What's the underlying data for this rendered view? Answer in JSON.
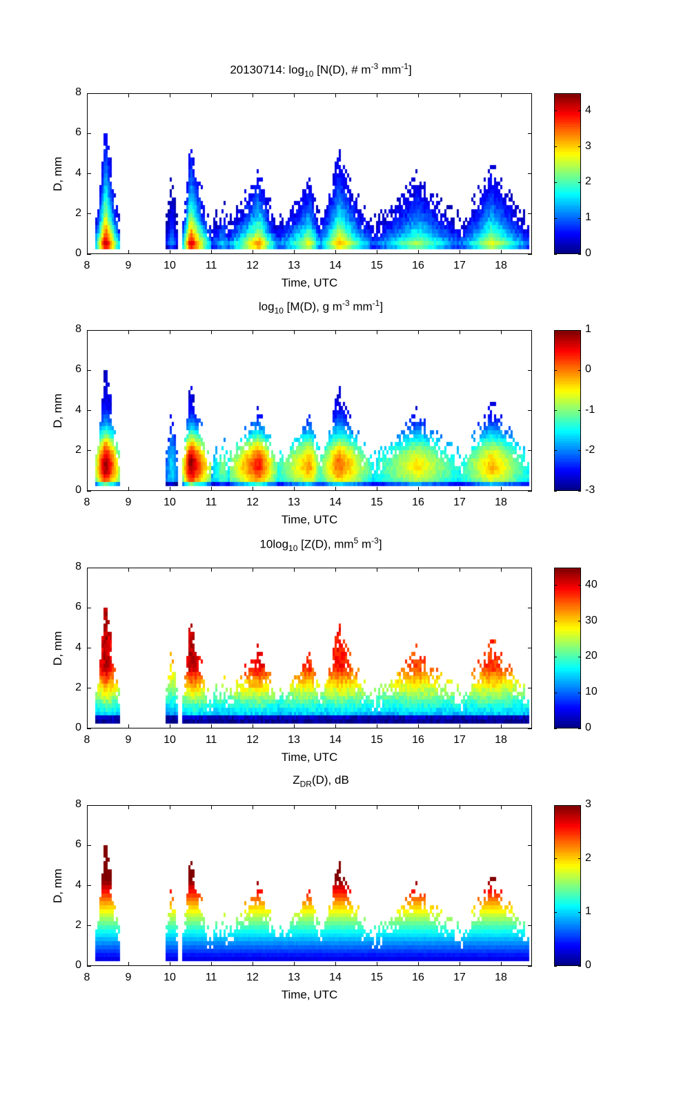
{
  "figure": {
    "date": "20130714"
  },
  "chart_data": [
    {
      "type": "heatmap",
      "title_parts": {
        "pre": "20130714: log",
        "sub": "10",
        "mid": " [N(D), # m",
        "sup1": "-3",
        "mid2": " mm",
        "sup2": "-1",
        "post": "]"
      },
      "title": "20130714: log10 [N(D), # m^-3 mm^-1]",
      "xlabel": "Time, UTC",
      "ylabel": "D, mm",
      "xlim": [
        8,
        18.75
      ],
      "ylim": [
        0,
        8
      ],
      "xticks": [
        "8",
        "9",
        "10",
        "11",
        "12",
        "13",
        "14",
        "15",
        "16",
        "17",
        "18"
      ],
      "yticks": [
        "0",
        "2",
        "4",
        "6",
        "8"
      ],
      "colorbar": {
        "range": [
          0,
          4.5
        ],
        "ticks": [
          "0",
          "1",
          "2",
          "3",
          "4"
        ],
        "colormap": "jet"
      },
      "field": "N",
      "description": "Drop number concentration spectra; maxima (~4.5) at D<1 mm near 8.5, 10.5, 12.2 UTC"
    },
    {
      "type": "heatmap",
      "title_parts": {
        "pre": "log",
        "sub": "10",
        "mid": " [M(D), g m",
        "sup1": "-3",
        "mid2": " mm",
        "sup2": "-1",
        "post": "]"
      },
      "title": "log10 [M(D), g m^-3 mm^-1]",
      "xlabel": "Time, UTC",
      "ylabel": "D, mm",
      "xlim": [
        8,
        18.75
      ],
      "ylim": [
        0,
        8
      ],
      "xticks": [
        "8",
        "9",
        "10",
        "11",
        "12",
        "13",
        "14",
        "15",
        "16",
        "17",
        "18"
      ],
      "yticks": [
        "0",
        "2",
        "4",
        "6",
        "8"
      ],
      "colorbar": {
        "range": [
          -3,
          1
        ],
        "ticks": [
          "-3",
          "-2",
          "-1",
          "0",
          "1"
        ],
        "colormap": "jet"
      },
      "field": "M",
      "description": "Mass spectra; maxima (~1) around D 1-2 mm near 10.5 UTC"
    },
    {
      "type": "heatmap",
      "title_parts": {
        "pre": "10log",
        "sub": "10",
        "mid": " [Z(D),  mm",
        "sup1": "5",
        "mid2": " m",
        "sup2": "-3",
        "post": "]"
      },
      "title": "10log10 [Z(D), mm^5 m^-3]",
      "xlabel": "Time, UTC",
      "ylabel": "D, mm",
      "xlim": [
        8,
        18.75
      ],
      "ylim": [
        0,
        8
      ],
      "xticks": [
        "8",
        "9",
        "10",
        "11",
        "12",
        "13",
        "14",
        "15",
        "16",
        "17",
        "18"
      ],
      "yticks": [
        "0",
        "2",
        "4",
        "6",
        "8"
      ],
      "colorbar": {
        "range": [
          0,
          45
        ],
        "ticks": [
          "0",
          "10",
          "20",
          "30",
          "40"
        ],
        "colormap": "jet"
      },
      "field": "Z",
      "description": "Reflectivity spectra; maxima (~45 dB) at large D near 8.4 and 10.5 UTC"
    },
    {
      "type": "heatmap",
      "title_parts": {
        "pre": "Z",
        "sub": "DR",
        "mid": "(D), dB",
        "sup1": "",
        "mid2": "",
        "sup2": "",
        "post": ""
      },
      "title": "ZDR(D), dB",
      "xlabel": "Time, UTC",
      "ylabel": "D, mm",
      "xlim": [
        8,
        18.75
      ],
      "ylim": [
        0,
        8
      ],
      "xticks": [
        "8",
        "9",
        "10",
        "11",
        "12",
        "13",
        "14",
        "15",
        "16",
        "17",
        "18"
      ],
      "yticks": [
        "0",
        "2",
        "4",
        "6",
        "8"
      ],
      "colorbar": {
        "range": [
          0,
          3
        ],
        "ticks": [
          "0",
          "1",
          "2",
          "3"
        ],
        "colormap": "jet"
      },
      "field": "ZDR",
      "description": "Differential reflectivity increasing with D: ~0.2 dB at 0.5 mm to ~3 dB at 5+ mm"
    }
  ],
  "rain_events": [
    {
      "t0": 8.2,
      "t1": 8.8,
      "peak_t": 8.45,
      "dmax": 6.5,
      "intensity": 1.0
    },
    {
      "t0": 9.9,
      "t1": 10.2,
      "peak_t": 10.05,
      "dmax": 4.0,
      "intensity": 0.25
    },
    {
      "t0": 10.3,
      "t1": 11.0,
      "peak_t": 10.5,
      "dmax": 5.5,
      "intensity": 1.0
    },
    {
      "t0": 11.0,
      "t1": 11.5,
      "peak_t": 11.3,
      "dmax": 2.3,
      "intensity": 0.45
    },
    {
      "t0": 11.4,
      "t1": 12.6,
      "peak_t": 12.15,
      "dmax": 4.0,
      "intensity": 0.85
    },
    {
      "t0": 12.6,
      "t1": 13.7,
      "peak_t": 13.4,
      "dmax": 3.8,
      "intensity": 0.7
    },
    {
      "t0": 13.6,
      "t1": 14.9,
      "peak_t": 14.1,
      "dmax": 5.0,
      "intensity": 0.75
    },
    {
      "t0": 14.9,
      "t1": 17.1,
      "peak_t": 16.0,
      "dmax": 3.8,
      "intensity": 0.6
    },
    {
      "t0": 17.0,
      "t1": 18.7,
      "peak_t": 17.8,
      "dmax": 4.4,
      "intensity": 0.65
    }
  ]
}
